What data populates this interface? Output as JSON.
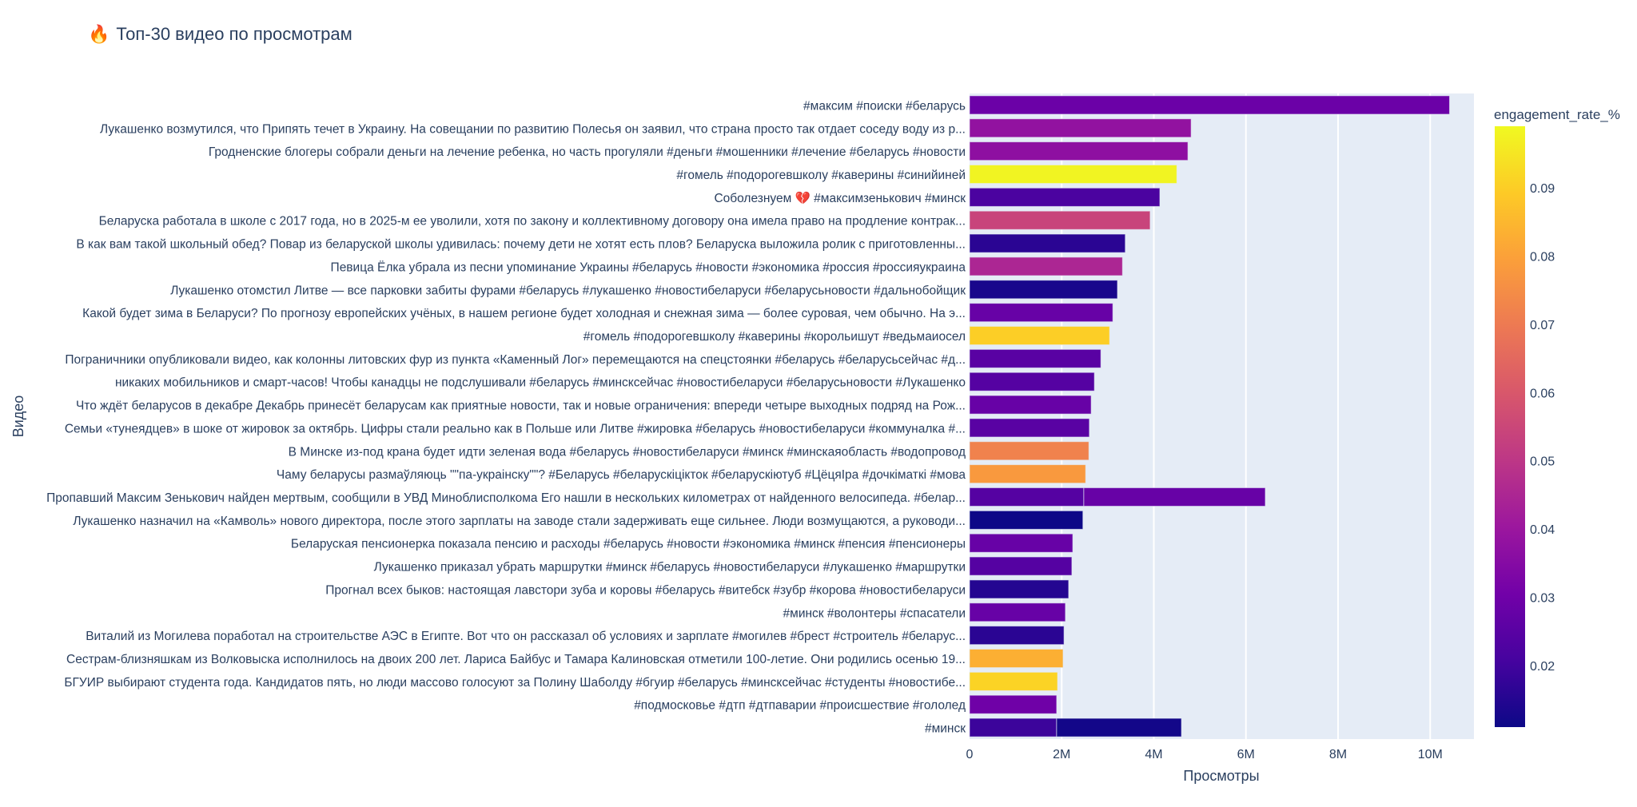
{
  "chart_data": {
    "type": "bar",
    "orientation": "horizontal",
    "title": "Топ-30 видео по просмотрам",
    "title_icon": "🔥",
    "xlabel": "Просмотры",
    "ylabel": "Видео",
    "xlim": [
      0,
      10950000
    ],
    "x_ticks": [
      {
        "value": 0,
        "label": "0"
      },
      {
        "value": 2000000,
        "label": "2M"
      },
      {
        "value": 4000000,
        "label": "4M"
      },
      {
        "value": 6000000,
        "label": "6M"
      },
      {
        "value": 8000000,
        "label": "8M"
      },
      {
        "value": 10000000,
        "label": "10M"
      }
    ],
    "grid": true,
    "colorbar": {
      "title": "engagement_rate_%",
      "range": [
        0.011,
        0.099
      ],
      "ticks": [
        "0.02",
        "0.03",
        "0.04",
        "0.05",
        "0.06",
        "0.07",
        "0.08",
        "0.09"
      ],
      "tick_values": [
        0.02,
        0.03,
        0.04,
        0.05,
        0.06,
        0.07,
        0.08,
        0.09
      ],
      "colorscale": "Plasma",
      "position": "right"
    },
    "categories": [
      "#максим #поиски #беларусь",
      "Лукашенко возмутился, что Припять течет в Украину. На совещании по развитию Полесья он заявил, что страна просто так отдает соседу воду из р...",
      "Гродненские блогеры собрали деньги на лечение ребенка, но часть прогуляли #деньги #мошенники #лечение #беларусь #новости",
      "#гомель #подорогевшколу #каверины #синийиней",
      "Соболезнуем 💔 #максимзенькович #минск",
      "Беларуска работала в школе с 2017 года, но в 2025-м ее уволили, хотя по закону и коллективному договору она имела право на продление контрак...",
      "В как вам такой школьный обед? Повар из беларуской школы удивилась: почему дети не хотят есть плов? Беларуска выложила ролик с приготовленны...",
      "Певица Ёлка убрала из песни упоминание Украины #беларусь #новости #экономика #россия #россияукраина",
      "Лукашенко отомстил Литве — все парковки забиты фурами #беларусь #лукашенко #новостибеларуси #беларусьновости #дальнобойщик",
      "Какой будет зима в Беларуси? По прогнозу европейских учёных, в нашем регионе будет холодная и снежная зима — более суровая, чем обычно. На э...",
      "#гомель #подорогевшколу #каверины #корольишут #ведьмаиосел",
      "Пограничники опубликовали видео, как колонны литовских фур из пункта «Каменный Лог» перемещаются на спецстоянки #беларусь #беларусьсейчас #д...",
      "никаких мобильников и смарт-часов! Чтобы канадцы не подслушивали #беларусь #минсксейчас #новостибеларуси #беларусьновости #Лукашенко",
      "Что ждёт беларусов в декабре Декабрь принесёт беларусам как приятные новости, так и новые ограничения: впереди четыре выходных подряд на Рож...",
      "Семьи «тунеядцев» в шоке от жировок за октябрь. Цифры стали реально как в Польше или Литве #жировка #беларусь #новостибеларуси #коммуналка #...",
      "В Минске из-под крана будет идти зеленая вода #беларусь #новостибеларуси #минск #минскаяобласть #водопровод",
      "Чаму беларусы размаўляюць \"\"па-украінску\"\"? #Беларусь #беларускіцікток #беларускіютуб #ЦёцяIра #дочкіматкі #мова",
      "Пропавший Максим Зенькович найден мертвым, сообщили в УВД Миноблисполкома Его нашли в нескольких километрах от найденного велосипеда. #белар...",
      "Лукашенко назначил на «Камволь» нового директора, после этого зарплаты на заводе стали задерживать еще сильнее. Люди возмущаются, а руководи...",
      "Беларуская пенсионерка показала пенсию и расходы #беларусь #новости #экономика #минск #пенсия #пенсионеры",
      "Лукашенко приказал убрать маршрутки #минск #беларусь #новостибеларуси #лукашенко #маршрутки",
      "Прогнал всех быков: настоящая лавстори зуба и коровы #беларусь #витебск #зубр #корова #новостибеларуси",
      "#минск #волонтеры #спасатели",
      "Виталий из Могилева поработал на строительстве АЭС в Египте. Вот что он рассказал об условиях и зарплате #могилев #брест #строитель #беларус...",
      "Сестрам-близняшкам из Волковыска исполнилось на двоих 200 лет. Лариса Байбус и Тамара Калиновская отметили 100-летие. Они родились осенью 19...",
      "БГУИР выбирают студента года. Кандидатов пять, но люди массово голосуют за Полину Шаболду #бгуир #беларусь #минсксейчас #студенты #новостибе...",
      "#подмосковье #дтп #дтпаварии #происшествие #гололед",
      "#минск"
    ],
    "bars": [
      {
        "row": 0,
        "views": 10420000,
        "engagement_rate": 0.029
      },
      {
        "row": 1,
        "views": 4810000,
        "engagement_rate": 0.038
      },
      {
        "row": 2,
        "views": 4740000,
        "engagement_rate": 0.037
      },
      {
        "row": 3,
        "views": 4500000,
        "engagement_rate": 0.098
      },
      {
        "row": 4,
        "views": 4130000,
        "engagement_rate": 0.022
      },
      {
        "row": 5,
        "views": 3920000,
        "engagement_rate": 0.054
      },
      {
        "row": 6,
        "views": 3380000,
        "engagement_rate": 0.016
      },
      {
        "row": 7,
        "views": 3320000,
        "engagement_rate": 0.045
      },
      {
        "row": 8,
        "views": 3210000,
        "engagement_rate": 0.013
      },
      {
        "row": 9,
        "views": 3110000,
        "engagement_rate": 0.028
      },
      {
        "row": 10,
        "views": 3040000,
        "engagement_rate": 0.09
      },
      {
        "row": 11,
        "views": 2850000,
        "engagement_rate": 0.025
      },
      {
        "row": 12,
        "views": 2710000,
        "engagement_rate": 0.024
      },
      {
        "row": 13,
        "views": 2640000,
        "engagement_rate": 0.028
      },
      {
        "row": 14,
        "views": 2600000,
        "engagement_rate": 0.025
      },
      {
        "row": 15,
        "views": 2590000,
        "engagement_rate": 0.072
      },
      {
        "row": 16,
        "views": 2520000,
        "engagement_rate": 0.078
      },
      {
        "row": 17,
        "views": 2480000,
        "engagement_rate": 0.024
      },
      {
        "row": 17,
        "views": 3940000,
        "engagement_rate": 0.028
      },
      {
        "row": 18,
        "views": 2460000,
        "engagement_rate": 0.011
      },
      {
        "row": 19,
        "views": 2240000,
        "engagement_rate": 0.028
      },
      {
        "row": 20,
        "views": 2220000,
        "engagement_rate": 0.024
      },
      {
        "row": 21,
        "views": 2150000,
        "engagement_rate": 0.015
      },
      {
        "row": 22,
        "views": 2080000,
        "engagement_rate": 0.028
      },
      {
        "row": 23,
        "views": 2050000,
        "engagement_rate": 0.016
      },
      {
        "row": 24,
        "views": 2030000,
        "engagement_rate": 0.083
      },
      {
        "row": 25,
        "views": 1910000,
        "engagement_rate": 0.091
      },
      {
        "row": 26,
        "views": 1890000,
        "engagement_rate": 0.03
      },
      {
        "row": 27,
        "views": 1890000,
        "engagement_rate": 0.019
      },
      {
        "row": 27,
        "views": 2710000,
        "engagement_rate": 0.012
      }
    ],
    "barmode": "stack"
  }
}
